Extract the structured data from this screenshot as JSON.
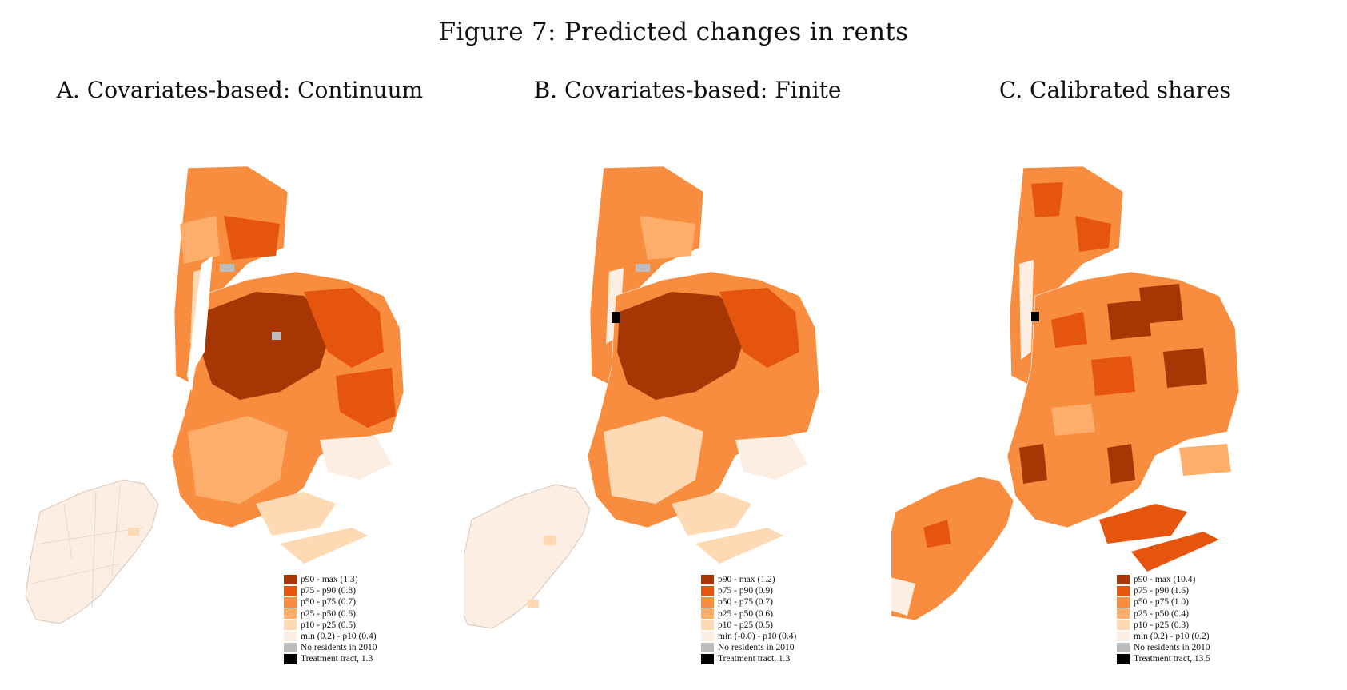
{
  "figure_title": "Figure 7: Predicted changes in rents",
  "colors": {
    "c90": "#a63603",
    "c75": "#e6550d",
    "c50": "#f88d3f",
    "c25": "#fdae6b",
    "c10": "#fdd9b4",
    "cmin": "#fdeee3",
    "none": "#bdbdbd",
    "treat": "#000000"
  },
  "panels": [
    {
      "title": "A. Covariates-based: Continuum",
      "legend": [
        {
          "label": "p90 - max (1.3)",
          "color": "#a63603"
        },
        {
          "label": "p75 - p90 (0.8)",
          "color": "#e6550d"
        },
        {
          "label": "p50 - p75 (0.7)",
          "color": "#f88d3f"
        },
        {
          "label": "p25 - p50 (0.6)",
          "color": "#fdae6b"
        },
        {
          "label": "p10 - p25 (0.5)",
          "color": "#fdd9b4"
        },
        {
          "label": "min (0.2) - p10 (0.4)",
          "color": "#fdeee3"
        },
        {
          "label": "No residents in 2010",
          "color": "#bdbdbd"
        },
        {
          "label": "Treatment tract, 1.3",
          "color": "#000000"
        }
      ]
    },
    {
      "title": "B. Covariates-based: Finite",
      "legend": [
        {
          "label": "p90 - max (1.2)",
          "color": "#a63603"
        },
        {
          "label": "p75 - p90 (0.9)",
          "color": "#e6550d"
        },
        {
          "label": "p50 - p75 (0.7)",
          "color": "#f88d3f"
        },
        {
          "label": "p25 - p50 (0.6)",
          "color": "#fdae6b"
        },
        {
          "label": "p10 - p25 (0.5)",
          "color": "#fdd9b4"
        },
        {
          "label": "min (-0.0) - p10 (0.4)",
          "color": "#fdeee3"
        },
        {
          "label": "No residents in 2010",
          "color": "#bdbdbd"
        },
        {
          "label": "Treatment tract, 1.3",
          "color": "#000000"
        }
      ]
    },
    {
      "title": "C. Calibrated shares",
      "legend": [
        {
          "label": "p90 - max (10.4)",
          "color": "#a63603"
        },
        {
          "label": "p75 - p90 (1.6)",
          "color": "#e6550d"
        },
        {
          "label": "p50 - p75 (1.0)",
          "color": "#f88d3f"
        },
        {
          "label": "p25 - p50 (0.4)",
          "color": "#fdae6b"
        },
        {
          "label": "p10 - p25 (0.3)",
          "color": "#fdd9b4"
        },
        {
          "label": "min (0.2) - p10 (0.2)",
          "color": "#fdeee3"
        },
        {
          "label": "No residents in 2010",
          "color": "#bdbdbd"
        },
        {
          "label": "Treatment tract, 13.5",
          "color": "#000000"
        }
      ]
    }
  ]
}
